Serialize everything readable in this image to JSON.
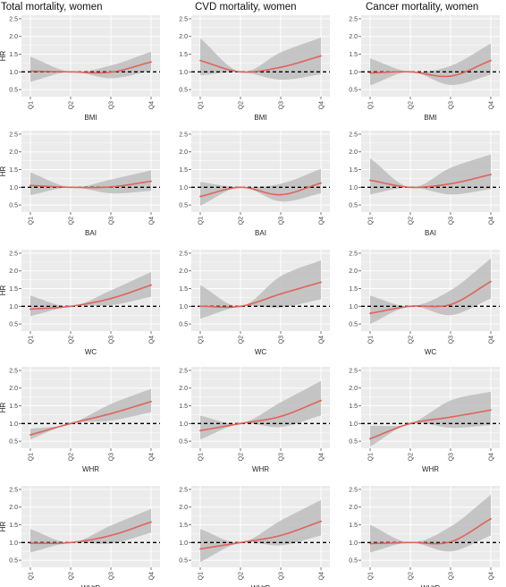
{
  "figure": {
    "column_titles": [
      "Total mortality, women",
      "CVD mortality, women",
      "Cancer mortality, women"
    ],
    "y_axis_label": "HR",
    "background_color": "#ebebeb",
    "grid_color": "#ffffff",
    "band_color": "#bdbdbd",
    "line_color": "#e0635a",
    "reference_line_color": "#000000"
  },
  "chart_data": [
    {
      "type": "line",
      "title": "Total mortality, women",
      "xlabel": "BMI",
      "ylabel": "HR",
      "categories": [
        "Q1",
        "Q2",
        "Q3",
        "Q4"
      ],
      "yticks": [
        "0.5",
        "1.0",
        "1.5",
        "2.0",
        "2.5"
      ],
      "ylim": [
        0.3,
        2.6
      ],
      "reference_line": 1.0,
      "grid": true,
      "series": [
        {
          "values": [
            1.02,
            1.0,
            0.99,
            1.28
          ],
          "lower": [
            0.72,
            1.0,
            0.82,
            1.03
          ],
          "upper": [
            1.43,
            1.0,
            1.18,
            1.57
          ]
        }
      ]
    },
    {
      "type": "line",
      "title": "CVD mortality, women",
      "xlabel": "BMI",
      "ylabel": "HR",
      "categories": [
        "Q1",
        "Q2",
        "Q3",
        "Q4"
      ],
      "yticks": [
        "0.5",
        "1.0",
        "1.5",
        "2.0",
        "2.5"
      ],
      "ylim": [
        0.3,
        2.6
      ],
      "reference_line": 1.0,
      "grid": true,
      "series": [
        {
          "values": [
            1.32,
            1.0,
            1.13,
            1.45
          ],
          "lower": [
            0.9,
            1.0,
            0.78,
            0.93
          ],
          "upper": [
            1.95,
            1.0,
            1.55,
            1.97
          ]
        }
      ]
    },
    {
      "type": "line",
      "title": "Cancer mortality, women",
      "xlabel": "BMI",
      "ylabel": "HR",
      "categories": [
        "Q1",
        "Q2",
        "Q3",
        "Q4"
      ],
      "yticks": [
        "0.5",
        "1.0",
        "1.5",
        "2.0",
        "2.5"
      ],
      "ylim": [
        0.3,
        2.6
      ],
      "reference_line": 1.0,
      "grid": true,
      "series": [
        {
          "values": [
            0.97,
            1.0,
            0.88,
            1.32
          ],
          "lower": [
            0.62,
            1.0,
            0.63,
            0.92
          ],
          "upper": [
            1.38,
            1.0,
            1.17,
            1.8
          ]
        }
      ]
    },
    {
      "type": "line",
      "xlabel": "BAI",
      "ylabel": "HR",
      "categories": [
        "Q1",
        "Q2",
        "Q3",
        "Q4"
      ],
      "yticks": [
        "0.5",
        "1.0",
        "1.5",
        "2.0",
        "2.5"
      ],
      "ylim": [
        0.3,
        2.6
      ],
      "reference_line": 1.0,
      "grid": true,
      "series": [
        {
          "values": [
            1.05,
            1.0,
            1.01,
            1.17
          ],
          "lower": [
            0.78,
            1.0,
            0.83,
            0.9
          ],
          "upper": [
            1.42,
            1.0,
            1.22,
            1.48
          ]
        }
      ]
    },
    {
      "type": "line",
      "xlabel": "BAI",
      "ylabel": "HR",
      "categories": [
        "Q1",
        "Q2",
        "Q3",
        "Q4"
      ],
      "yticks": [
        "0.5",
        "1.0",
        "1.5",
        "2.0",
        "2.5"
      ],
      "ylim": [
        0.3,
        2.6
      ],
      "reference_line": 1.0,
      "grid": true,
      "series": [
        {
          "values": [
            0.74,
            1.0,
            0.79,
            1.12
          ],
          "lower": [
            0.48,
            1.0,
            0.6,
            0.83
          ],
          "upper": [
            1.15,
            1.0,
            1.1,
            1.52
          ]
        }
      ]
    },
    {
      "type": "line",
      "xlabel": "BAI",
      "ylabel": "HR",
      "categories": [
        "Q1",
        "Q2",
        "Q3",
        "Q4"
      ],
      "yticks": [
        "0.5",
        "1.0",
        "1.5",
        "2.0",
        "2.5"
      ],
      "ylim": [
        0.3,
        2.6
      ],
      "reference_line": 1.0,
      "grid": true,
      "series": [
        {
          "values": [
            1.2,
            1.0,
            1.1,
            1.36
          ],
          "lower": [
            0.8,
            1.0,
            0.8,
            0.95
          ],
          "upper": [
            1.82,
            1.0,
            1.55,
            1.93
          ]
        }
      ]
    },
    {
      "type": "line",
      "xlabel": "WC",
      "ylabel": "HR",
      "categories": [
        "Q1",
        "Q2",
        "Q3",
        "Q4"
      ],
      "yticks": [
        "0.5",
        "1.0",
        "1.5",
        "2.0",
        "2.5"
      ],
      "ylim": [
        0.3,
        2.6
      ],
      "reference_line": 1.0,
      "grid": true,
      "series": [
        {
          "values": [
            0.92,
            1.0,
            1.22,
            1.6
          ],
          "lower": [
            0.72,
            1.0,
            1.03,
            1.27
          ],
          "upper": [
            1.3,
            1.0,
            1.45,
            1.97
          ]
        }
      ]
    },
    {
      "type": "line",
      "xlabel": "WC",
      "ylabel": "HR",
      "categories": [
        "Q1",
        "Q2",
        "Q3",
        "Q4"
      ],
      "yticks": [
        "0.5",
        "1.0",
        "1.5",
        "2.0",
        "2.5"
      ],
      "ylim": [
        0.3,
        2.6
      ],
      "reference_line": 1.0,
      "grid": true,
      "series": [
        {
          "values": [
            1.0,
            1.0,
            1.35,
            1.68
          ],
          "lower": [
            0.65,
            1.0,
            0.97,
            1.2
          ],
          "upper": [
            1.6,
            1.0,
            1.85,
            2.3
          ]
        }
      ]
    },
    {
      "type": "line",
      "xlabel": "WC",
      "ylabel": "HR",
      "categories": [
        "Q1",
        "Q2",
        "Q3",
        "Q4"
      ],
      "yticks": [
        "0.5",
        "1.0",
        "1.5",
        "2.0",
        "2.5"
      ],
      "ylim": [
        0.3,
        2.6
      ],
      "reference_line": 1.0,
      "grid": true,
      "series": [
        {
          "values": [
            0.8,
            1.0,
            1.05,
            1.7
          ],
          "lower": [
            0.5,
            1.0,
            0.75,
            1.22
          ],
          "upper": [
            1.3,
            1.0,
            1.45,
            2.35
          ]
        }
      ]
    },
    {
      "type": "line",
      "xlabel": "WHR",
      "ylabel": "HR",
      "categories": [
        "Q1",
        "Q2",
        "Q3",
        "Q4"
      ],
      "yticks": [
        "0.5",
        "1.0",
        "1.5",
        "2.0",
        "2.5"
      ],
      "ylim": [
        0.3,
        2.6
      ],
      "reference_line": 1.0,
      "grid": true,
      "series": [
        {
          "values": [
            0.68,
            1.0,
            1.28,
            1.62
          ],
          "lower": [
            0.55,
            1.0,
            1.08,
            1.32
          ],
          "upper": [
            0.85,
            1.0,
            1.55,
            1.98
          ]
        }
      ]
    },
    {
      "type": "line",
      "xlabel": "WHR",
      "ylabel": "HR",
      "categories": [
        "Q1",
        "Q2",
        "Q3",
        "Q4"
      ],
      "yticks": [
        "0.5",
        "1.0",
        "1.5",
        "2.0",
        "2.5"
      ],
      "ylim": [
        0.3,
        2.6
      ],
      "reference_line": 1.0,
      "grid": true,
      "series": [
        {
          "values": [
            0.8,
            1.0,
            1.2,
            1.65
          ],
          "lower": [
            0.55,
            1.0,
            0.9,
            1.23
          ],
          "upper": [
            1.22,
            1.0,
            1.6,
            2.2
          ]
        }
      ]
    },
    {
      "type": "line",
      "xlabel": "WHR",
      "ylabel": "HR",
      "categories": [
        "Q1",
        "Q2",
        "Q3",
        "Q4"
      ],
      "yticks": [
        "0.5",
        "1.0",
        "1.5",
        "2.0",
        "2.5"
      ],
      "ylim": [
        0.3,
        2.6
      ],
      "reference_line": 1.0,
      "grid": true,
      "series": [
        {
          "values": [
            0.57,
            1.0,
            1.18,
            1.38
          ],
          "lower": [
            0.35,
            1.0,
            0.88,
            0.95
          ],
          "upper": [
            0.93,
            1.0,
            1.65,
            1.9
          ]
        }
      ]
    },
    {
      "type": "line",
      "xlabel": "WHtR",
      "ylabel": "HR",
      "categories": [
        "Q1",
        "Q2",
        "Q3",
        "Q4"
      ],
      "yticks": [
        "0.5",
        "1.0",
        "1.5",
        "2.0",
        "2.5"
      ],
      "ylim": [
        0.3,
        2.6
      ],
      "reference_line": 1.0,
      "grid": true,
      "series": [
        {
          "values": [
            0.98,
            1.0,
            1.2,
            1.58
          ],
          "lower": [
            0.72,
            1.0,
            0.97,
            1.28
          ],
          "upper": [
            1.38,
            1.0,
            1.48,
            1.95
          ]
        }
      ]
    },
    {
      "type": "line",
      "xlabel": "WHtR",
      "ylabel": "HR",
      "categories": [
        "Q1",
        "Q2",
        "Q3",
        "Q4"
      ],
      "yticks": [
        "0.5",
        "1.0",
        "1.5",
        "2.0",
        "2.5"
      ],
      "ylim": [
        0.3,
        2.6
      ],
      "reference_line": 1.0,
      "grid": true,
      "series": [
        {
          "values": [
            0.82,
            1.0,
            1.2,
            1.6
          ],
          "lower": [
            0.45,
            1.0,
            0.92,
            1.2
          ],
          "upper": [
            1.38,
            1.0,
            1.62,
            2.2
          ]
        }
      ]
    },
    {
      "type": "line",
      "xlabel": "WHtR",
      "ylabel": "HR",
      "categories": [
        "Q1",
        "Q2",
        "Q3",
        "Q4"
      ],
      "yticks": [
        "0.5",
        "1.0",
        "1.5",
        "2.0",
        "2.5"
      ],
      "ylim": [
        0.3,
        2.6
      ],
      "reference_line": 1.0,
      "grid": true,
      "series": [
        {
          "values": [
            0.97,
            1.0,
            1.02,
            1.67
          ],
          "lower": [
            0.72,
            1.0,
            0.75,
            1.2
          ],
          "upper": [
            1.5,
            1.0,
            1.45,
            2.35
          ]
        }
      ]
    }
  ]
}
